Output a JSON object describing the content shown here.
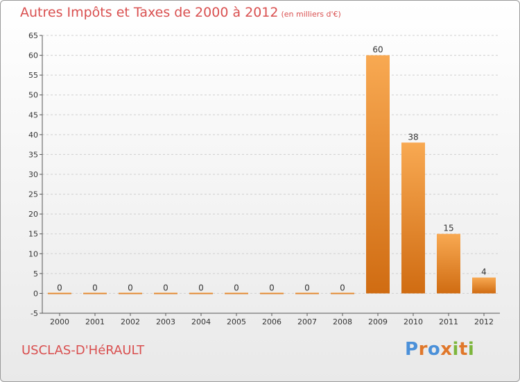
{
  "header": {
    "title": "Autres Impôts et Taxes de 2000 à 2012",
    "unit": "(en milliers d'€)"
  },
  "footer": {
    "commune": "USCLAS-D'HéRAULT",
    "brand": [
      "P",
      "r",
      "o",
      "x",
      "i",
      "t",
      "i"
    ]
  },
  "colors": {
    "title": "#d94f4f",
    "bar_top": "#f8a952",
    "bar_bottom": "#d06c12",
    "grid": "#cfcfcf"
  },
  "chart_data": {
    "type": "bar",
    "categories": [
      "2000",
      "2001",
      "2002",
      "2003",
      "2004",
      "2005",
      "2006",
      "2007",
      "2008",
      "2009",
      "2010",
      "2011",
      "2012"
    ],
    "values": [
      0,
      0,
      0,
      0,
      0,
      0,
      0,
      0,
      0,
      60,
      38,
      15,
      4
    ],
    "data_labels": [
      "0",
      "0",
      "0",
      "0",
      "0",
      "0",
      "0",
      "0",
      "0",
      "60",
      "38",
      "15",
      "4"
    ],
    "ylim": [
      -5,
      65
    ],
    "yticks": [
      -5,
      0,
      5,
      10,
      15,
      20,
      25,
      30,
      35,
      40,
      45,
      50,
      55,
      60,
      65
    ],
    "grid": true,
    "grid_style": "dashed horizontal"
  }
}
